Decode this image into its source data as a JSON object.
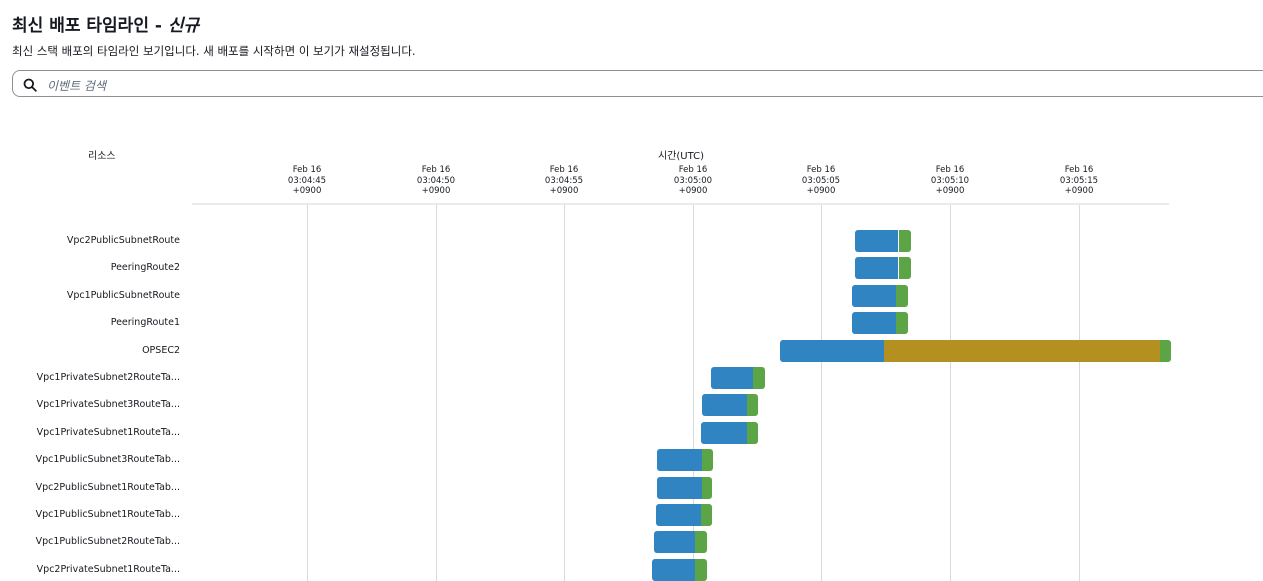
{
  "header": {
    "title": "최신 배포 타임라인 -",
    "title_tag": "신규",
    "subtitle": "최신 스택 배포의 타임라인 보기입니다. 새 배포를 시작하면 이 보기가 재설정됩니다."
  },
  "search": {
    "placeholder": "이벤트 검색",
    "icon": "search-icon"
  },
  "columns": {
    "resource": "리소스",
    "time": "시간(UTC)"
  },
  "colors": {
    "blue": "#3184c2",
    "green": "#5ba547",
    "olive": "#b49020"
  },
  "axis": {
    "ticks": [
      {
        "date": "Feb 16",
        "time": "03:04:45",
        "tz": "+0900",
        "seconds": 45
      },
      {
        "date": "Feb 16",
        "time": "03:04:50",
        "tz": "+0900",
        "seconds": 50
      },
      {
        "date": "Feb 16",
        "time": "03:04:55",
        "tz": "+0900",
        "seconds": 55
      },
      {
        "date": "Feb 16",
        "time": "03:05:00",
        "tz": "+0900",
        "seconds": 60
      },
      {
        "date": "Feb 16",
        "time": "03:05:05",
        "tz": "+0900",
        "seconds": 65
      },
      {
        "date": "Feb 16",
        "time": "03:05:10",
        "tz": "+0900",
        "seconds": 70
      },
      {
        "date": "Feb 16",
        "time": "03:05:15",
        "tz": "+0900",
        "seconds": 75
      }
    ]
  },
  "rows": [
    {
      "label": "Vpc2PublicSubnetRoute",
      "segments": [
        {
          "start": 66.3,
          "end": 68.0,
          "color": "blue"
        },
        {
          "start": 68.0,
          "end": 68.5,
          "color": "green"
        }
      ]
    },
    {
      "label": "PeeringRoute2",
      "segments": [
        {
          "start": 66.3,
          "end": 68.0,
          "color": "blue"
        },
        {
          "start": 68.0,
          "end": 68.5,
          "color": "green"
        }
      ]
    },
    {
      "label": "Vpc1PublicSubnetRoute",
      "segments": [
        {
          "start": 66.2,
          "end": 67.9,
          "color": "blue"
        },
        {
          "start": 67.9,
          "end": 68.35,
          "color": "green"
        }
      ]
    },
    {
      "label": "PeeringRoute1",
      "segments": [
        {
          "start": 66.2,
          "end": 67.9,
          "color": "blue"
        },
        {
          "start": 67.9,
          "end": 68.35,
          "color": "green"
        }
      ]
    },
    {
      "label": "OPSEC2",
      "segments": [
        {
          "start": 63.4,
          "end": 67.45,
          "color": "blue"
        },
        {
          "start": 67.45,
          "end": 78.15,
          "color": "olive"
        },
        {
          "start": 78.15,
          "end": 78.6,
          "color": "green"
        }
      ]
    },
    {
      "label": "Vpc1PrivateSubnet2RouteTa...",
      "segments": [
        {
          "start": 60.7,
          "end": 62.35,
          "color": "blue"
        },
        {
          "start": 62.35,
          "end": 62.8,
          "color": "green"
        }
      ]
    },
    {
      "label": "Vpc1PrivateSubnet3RouteTa...",
      "segments": [
        {
          "start": 60.35,
          "end": 62.1,
          "color": "blue"
        },
        {
          "start": 62.1,
          "end": 62.55,
          "color": "green"
        }
      ]
    },
    {
      "label": "Vpc1PrivateSubnet1RouteTa...",
      "segments": [
        {
          "start": 60.3,
          "end": 62.1,
          "color": "blue"
        },
        {
          "start": 62.1,
          "end": 62.55,
          "color": "green"
        }
      ]
    },
    {
      "label": "Vpc1PublicSubnet3RouteTab...",
      "segments": [
        {
          "start": 58.6,
          "end": 60.35,
          "color": "blue"
        },
        {
          "start": 60.35,
          "end": 60.8,
          "color": "green"
        }
      ]
    },
    {
      "label": "Vpc2PublicSubnet1RouteTab...",
      "segments": [
        {
          "start": 58.6,
          "end": 60.35,
          "color": "blue"
        },
        {
          "start": 60.35,
          "end": 60.75,
          "color": "green"
        }
      ]
    },
    {
      "label": "Vpc1PublicSubnet1RouteTab...",
      "segments": [
        {
          "start": 58.55,
          "end": 60.3,
          "color": "blue"
        },
        {
          "start": 60.3,
          "end": 60.75,
          "color": "green"
        }
      ]
    },
    {
      "label": "Vpc1PublicSubnet2RouteTab...",
      "segments": [
        {
          "start": 58.5,
          "end": 60.1,
          "color": "blue"
        },
        {
          "start": 60.1,
          "end": 60.55,
          "color": "green"
        }
      ]
    },
    {
      "label": "Vpc2PrivateSubnet1RouteTa...",
      "segments": [
        {
          "start": 58.4,
          "end": 60.1,
          "color": "blue"
        },
        {
          "start": 60.1,
          "end": 60.55,
          "color": "green"
        }
      ]
    }
  ]
}
